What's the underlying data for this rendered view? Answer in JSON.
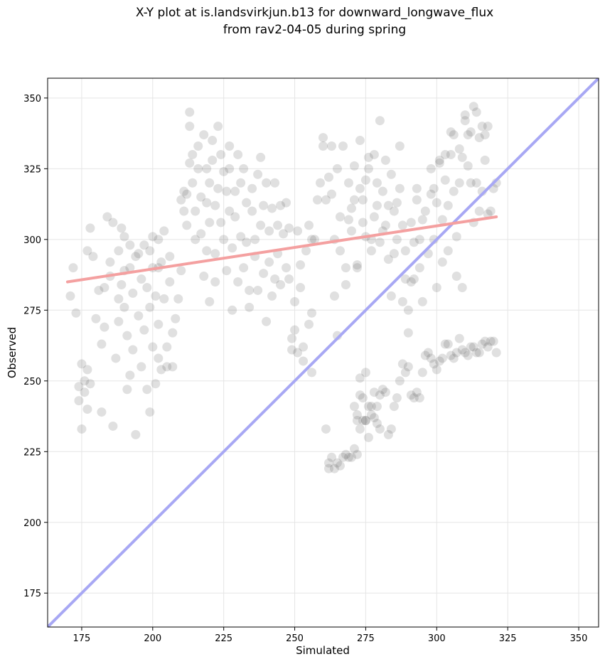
{
  "chart_data": {
    "type": "scatter",
    "title": [
      "X-Y plot at is.landsvirkjun.b13 for downward_longwave_flux",
      "from rav2-04-05 during spring"
    ],
    "xlabel": "Simulated",
    "ylabel": "Observed",
    "xlim": [
      163,
      357
    ],
    "ylim": [
      163,
      357
    ],
    "xticks": [
      175,
      200,
      225,
      250,
      275,
      300,
      325,
      350
    ],
    "yticks": [
      175,
      200,
      225,
      250,
      275,
      300,
      325,
      350
    ],
    "grid": true,
    "colors": {
      "points": "#555555",
      "fit_line": "#f4a0a0",
      "identity_line": "#a8a8f4",
      "grid": "#e5e5e5"
    },
    "fit_line": {
      "x": [
        170,
        321
      ],
      "y": [
        285,
        308
      ]
    },
    "identity_line": {
      "x": [
        163,
        357
      ],
      "y": [
        163,
        357
      ]
    },
    "points": [
      [
        171,
        280
      ],
      [
        172,
        290
      ],
      [
        173,
        274
      ],
      [
        174,
        248
      ],
      [
        174,
        243
      ],
      [
        175,
        256
      ],
      [
        175,
        233
      ],
      [
        176,
        246
      ],
      [
        176,
        250
      ],
      [
        177,
        254
      ],
      [
        177,
        240
      ],
      [
        177,
        296
      ],
      [
        178,
        249
      ],
      [
        178,
        304
      ],
      [
        179,
        294
      ],
      [
        180,
        272
      ],
      [
        181,
        282
      ],
      [
        182,
        263
      ],
      [
        182,
        239
      ],
      [
        183,
        283
      ],
      [
        183,
        269
      ],
      [
        184,
        308
      ],
      [
        185,
        292
      ],
      [
        185,
        287
      ],
      [
        186,
        306
      ],
      [
        186,
        234
      ],
      [
        187,
        258
      ],
      [
        188,
        279
      ],
      [
        188,
        296
      ],
      [
        188,
        271
      ],
      [
        189,
        284
      ],
      [
        189,
        304
      ],
      [
        190,
        301
      ],
      [
        190,
        276
      ],
      [
        190,
        289
      ],
      [
        191,
        266
      ],
      [
        191,
        247
      ],
      [
        192,
        290
      ],
      [
        192,
        298
      ],
      [
        192,
        252
      ],
      [
        193,
        261
      ],
      [
        193,
        281
      ],
      [
        194,
        231
      ],
      [
        194,
        294
      ],
      [
        195,
        295
      ],
      [
        195,
        273
      ],
      [
        196,
        286
      ],
      [
        196,
        255
      ],
      [
        197,
        298
      ],
      [
        197,
        268
      ],
      [
        198,
        283
      ],
      [
        198,
        247
      ],
      [
        199,
        296
      ],
      [
        199,
        276
      ],
      [
        199,
        239
      ],
      [
        200,
        301
      ],
      [
        200,
        290
      ],
      [
        200,
        262
      ],
      [
        201,
        280
      ],
      [
        201,
        249
      ],
      [
        202,
        290
      ],
      [
        202,
        300
      ],
      [
        202,
        258
      ],
      [
        202,
        270
      ],
      [
        203,
        292
      ],
      [
        203,
        254
      ],
      [
        204,
        303
      ],
      [
        204,
        279
      ],
      [
        205,
        262
      ],
      [
        205,
        255
      ],
      [
        206,
        285
      ],
      [
        206,
        294
      ],
      [
        207,
        255
      ],
      [
        207,
        267
      ],
      [
        208,
        272
      ],
      [
        209,
        279
      ],
      [
        210,
        289
      ],
      [
        210,
        314
      ],
      [
        211,
        317
      ],
      [
        211,
        310
      ],
      [
        212,
        316
      ],
      [
        212,
        305
      ],
      [
        213,
        327
      ],
      [
        213,
        340
      ],
      [
        213,
        345
      ],
      [
        214,
        320
      ],
      [
        214,
        330
      ],
      [
        215,
        300
      ],
      [
        215,
        310
      ],
      [
        216,
        325
      ],
      [
        216,
        333
      ],
      [
        217,
        302
      ],
      [
        217,
        315
      ],
      [
        218,
        287
      ],
      [
        218,
        337
      ],
      [
        219,
        296
      ],
      [
        219,
        313
      ],
      [
        219,
        325
      ],
      [
        220,
        306
      ],
      [
        220,
        278
      ],
      [
        220,
        320
      ],
      [
        221,
        335
      ],
      [
        221,
        328
      ],
      [
        222,
        312
      ],
      [
        222,
        285
      ],
      [
        222,
        295
      ],
      [
        223,
        340
      ],
      [
        223,
        318
      ],
      [
        224,
        306
      ],
      [
        224,
        330
      ],
      [
        225,
        300
      ],
      [
        225,
        324
      ],
      [
        226,
        289
      ],
      [
        226,
        317
      ],
      [
        227,
        310
      ],
      [
        227,
        333
      ],
      [
        227,
        325
      ],
      [
        228,
        275
      ],
      [
        228,
        297
      ],
      [
        229,
        317
      ],
      [
        229,
        308
      ],
      [
        230,
        285
      ],
      [
        230,
        330
      ],
      [
        231,
        301
      ],
      [
        231,
        320
      ],
      [
        232,
        325
      ],
      [
        232,
        290
      ],
      [
        233,
        299
      ],
      [
        233,
        313
      ],
      [
        234,
        276
      ],
      [
        234,
        282
      ],
      [
        235,
        310
      ],
      [
        235,
        318
      ],
      [
        236,
        300
      ],
      [
        236,
        294
      ],
      [
        237,
        282
      ],
      [
        237,
        323
      ],
      [
        238,
        329
      ],
      [
        238,
        305
      ],
      [
        239,
        288
      ],
      [
        239,
        312
      ],
      [
        240,
        271
      ],
      [
        240,
        320
      ],
      [
        241,
        303
      ],
      [
        241,
        292
      ],
      [
        242,
        311
      ],
      [
        242,
        280
      ],
      [
        243,
        286
      ],
      [
        243,
        320
      ],
      [
        244,
        305
      ],
      [
        244,
        295
      ],
      [
        245,
        312
      ],
      [
        245,
        284
      ],
      [
        246,
        302
      ],
      [
        247,
        290
      ],
      [
        247,
        313
      ],
      [
        248,
        286
      ],
      [
        248,
        304
      ],
      [
        249,
        261
      ],
      [
        249,
        265
      ],
      [
        250,
        268
      ],
      [
        250,
        278
      ],
      [
        251,
        303
      ],
      [
        251,
        260
      ],
      [
        252,
        291
      ],
      [
        252,
        283
      ],
      [
        253,
        257
      ],
      [
        253,
        262
      ],
      [
        254,
        296
      ],
      [
        255,
        270
      ],
      [
        255,
        305
      ],
      [
        256,
        253
      ],
      [
        256,
        274
      ],
      [
        256,
        300
      ],
      [
        257,
        300
      ],
      [
        258,
        314
      ],
      [
        259,
        320
      ],
      [
        260,
        333
      ],
      [
        260,
        336
      ],
      [
        261,
        314
      ],
      [
        262,
        322
      ],
      [
        263,
        333
      ],
      [
        263,
        316
      ],
      [
        264,
        300
      ],
      [
        264,
        280
      ],
      [
        265,
        266
      ],
      [
        265,
        325
      ],
      [
        266,
        296
      ],
      [
        266,
        308
      ],
      [
        267,
        333
      ],
      [
        268,
        290
      ],
      [
        268,
        284
      ],
      [
        269,
        307
      ],
      [
        269,
        320
      ],
      [
        270,
        311
      ],
      [
        270,
        303
      ],
      [
        271,
        314
      ],
      [
        271,
        326
      ],
      [
        272,
        291
      ],
      [
        272,
        290
      ],
      [
        273,
        318
      ],
      [
        273,
        335
      ],
      [
        274,
        314
      ],
      [
        274,
        306
      ],
      [
        275,
        321
      ],
      [
        275,
        301
      ],
      [
        276,
        325
      ],
      [
        276,
        329
      ],
      [
        277,
        296
      ],
      [
        277,
        300
      ],
      [
        278,
        308
      ],
      [
        278,
        330
      ],
      [
        279,
        320
      ],
      [
        279,
        312
      ],
      [
        280,
        299
      ],
      [
        280,
        342
      ],
      [
        281,
        303
      ],
      [
        281,
        317
      ],
      [
        282,
        328
      ],
      [
        282,
        305
      ],
      [
        283,
        312
      ],
      [
        283,
        293
      ],
      [
        284,
        323
      ],
      [
        284,
        280
      ],
      [
        285,
        310
      ],
      [
        285,
        295
      ],
      [
        286,
        313
      ],
      [
        286,
        300
      ],
      [
        287,
        333
      ],
      [
        287,
        318
      ],
      [
        288,
        305
      ],
      [
        288,
        278
      ],
      [
        289,
        296
      ],
      [
        289,
        286
      ],
      [
        290,
        275
      ],
      [
        290,
        267
      ],
      [
        291,
        306
      ],
      [
        291,
        285
      ],
      [
        292,
        299
      ],
      [
        292,
        286
      ],
      [
        293,
        314
      ],
      [
        293,
        318
      ],
      [
        294,
        300
      ],
      [
        294,
        290
      ],
      [
        295,
        307
      ],
      [
        295,
        278
      ],
      [
        296,
        310
      ],
      [
        297,
        295
      ],
      [
        298,
        325
      ],
      [
        298,
        316
      ],
      [
        299,
        318
      ],
      [
        299,
        300
      ],
      [
        300,
        313
      ],
      [
        300,
        283
      ],
      [
        301,
        327
      ],
      [
        301,
        328
      ],
      [
        302,
        307
      ],
      [
        302,
        292
      ],
      [
        303,
        321
      ],
      [
        303,
        330
      ],
      [
        304,
        312
      ],
      [
        304,
        296
      ],
      [
        305,
        330
      ],
      [
        305,
        338
      ],
      [
        306,
        317
      ],
      [
        306,
        337
      ],
      [
        307,
        301
      ],
      [
        307,
        287
      ],
      [
        308,
        320
      ],
      [
        308,
        332
      ],
      [
        309,
        329
      ],
      [
        309,
        283
      ],
      [
        310,
        344
      ],
      [
        310,
        342
      ],
      [
        311,
        337
      ],
      [
        311,
        326
      ],
      [
        312,
        320
      ],
      [
        312,
        338
      ],
      [
        313,
        347
      ],
      [
        313,
        306
      ],
      [
        314,
        320
      ],
      [
        314,
        345
      ],
      [
        315,
        336
      ],
      [
        315,
        310
      ],
      [
        316,
        340
      ],
      [
        316,
        317
      ],
      [
        317,
        328
      ],
      [
        317,
        337
      ],
      [
        318,
        340
      ],
      [
        318,
        309
      ],
      [
        319,
        310
      ],
      [
        320,
        318
      ],
      [
        321,
        320
      ],
      [
        271,
        241
      ],
      [
        272,
        238
      ],
      [
        272,
        236
      ],
      [
        273,
        245
      ],
      [
        273,
        251
      ],
      [
        274,
        244
      ],
      [
        275,
        236
      ],
      [
        275,
        253
      ],
      [
        276,
        230
      ],
      [
        277,
        241
      ],
      [
        278,
        246
      ],
      [
        279,
        235
      ],
      [
        280,
        233
      ],
      [
        281,
        247
      ],
      [
        282,
        246
      ],
      [
        283,
        231
      ],
      [
        284,
        233
      ],
      [
        285,
        241
      ],
      [
        286,
        244
      ],
      [
        287,
        250
      ],
      [
        288,
        256
      ],
      [
        289,
        253
      ],
      [
        290,
        255
      ],
      [
        291,
        245
      ],
      [
        292,
        244
      ],
      [
        293,
        246
      ],
      [
        294,
        244
      ],
      [
        295,
        253
      ],
      [
        296,
        259
      ],
      [
        297,
        260
      ],
      [
        298,
        258
      ],
      [
        299,
        256
      ],
      [
        300,
        254
      ],
      [
        301,
        257
      ],
      [
        302,
        258
      ],
      [
        303,
        263
      ],
      [
        304,
        263
      ],
      [
        305,
        259
      ],
      [
        306,
        258
      ],
      [
        307,
        260
      ],
      [
        308,
        265
      ],
      [
        309,
        261
      ],
      [
        310,
        260
      ],
      [
        311,
        259
      ],
      [
        312,
        262
      ],
      [
        313,
        262
      ],
      [
        314,
        260
      ],
      [
        315,
        260
      ],
      [
        316,
        263
      ],
      [
        317,
        264
      ],
      [
        318,
        262
      ],
      [
        319,
        264
      ],
      [
        320,
        264
      ],
      [
        321,
        260
      ],
      [
        261,
        233
      ],
      [
        262,
        219
      ],
      [
        262,
        221
      ],
      [
        263,
        223
      ],
      [
        264,
        219
      ],
      [
        265,
        221
      ],
      [
        266,
        220
      ],
      [
        267,
        223
      ],
      [
        268,
        224
      ],
      [
        269,
        223
      ],
      [
        270,
        223
      ],
      [
        271,
        226
      ],
      [
        272,
        224
      ],
      [
        273,
        233
      ],
      [
        274,
        236
      ],
      [
        275,
        236
      ],
      [
        276,
        241
      ],
      [
        277,
        238
      ],
      [
        278,
        237
      ],
      [
        279,
        241
      ],
      [
        280,
        245
      ]
    ]
  }
}
